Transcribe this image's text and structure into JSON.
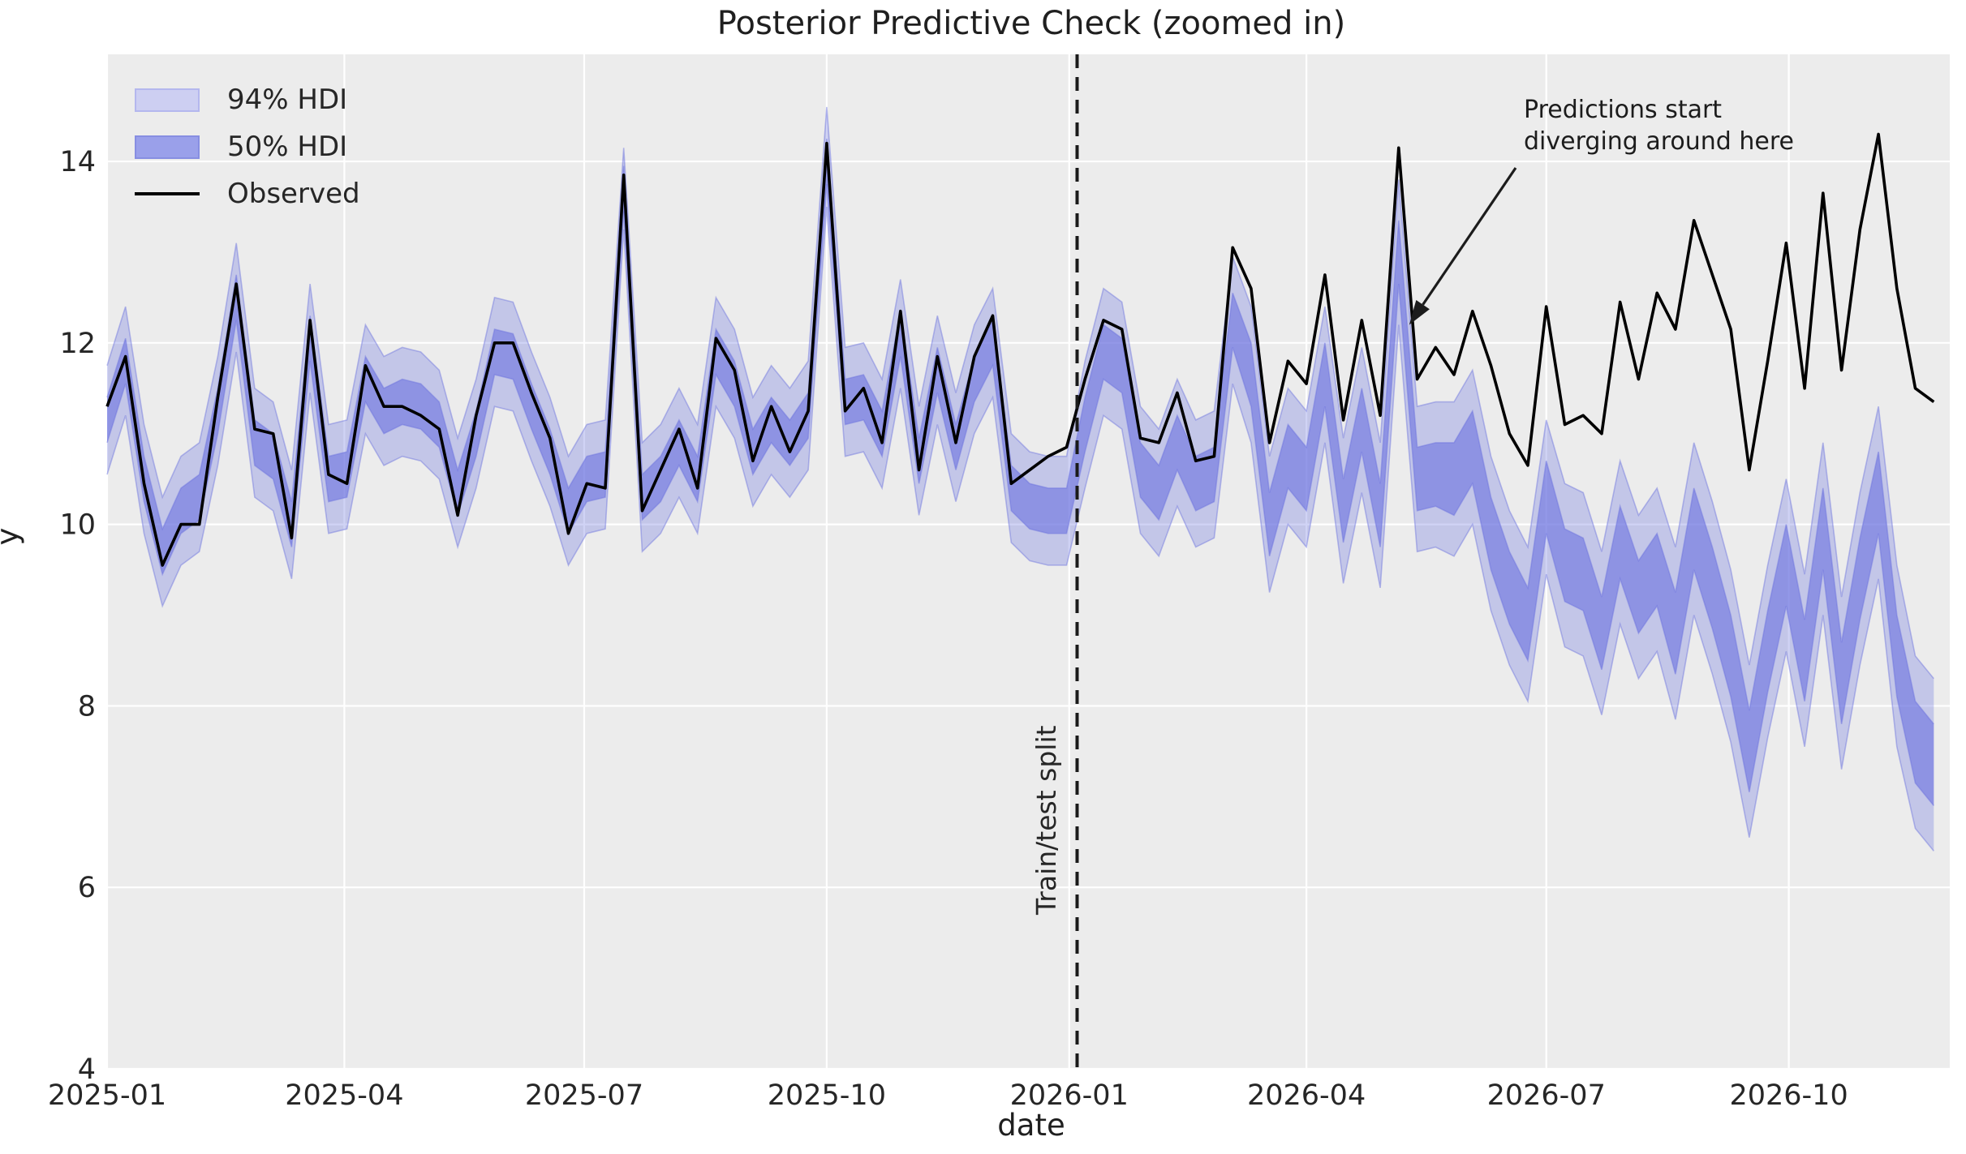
{
  "title": "Posterior Predictive Check (zoomed in)",
  "axes": {
    "xlabel": "date",
    "ylabel": "y"
  },
  "legend": {
    "items": [
      {
        "label": "94% HDI",
        "swatch": "band-light-icon"
      },
      {
        "label": "50% HDI",
        "swatch": "band-dark-icon"
      },
      {
        "label": "Observed",
        "swatch": "line-icon"
      }
    ]
  },
  "annotation": {
    "line1": "Predictions start",
    "line2": "diverging around here"
  },
  "split": {
    "label": "Train/test split",
    "date": "2026-01-04"
  },
  "colors": {
    "figure_bg": "#ffffff",
    "plot_bg": "#ececec",
    "grid": "#ffffff",
    "observed_line": "#000000",
    "band_base": "#7980e3",
    "band_edge": "#6a71dd",
    "split_line": "#1a1a1a",
    "text": "#262626"
  },
  "chart_data": {
    "type": "line",
    "title": "Posterior Predictive Check (zoomed in)",
    "xlabel": "date",
    "ylabel": "y",
    "grid": true,
    "legend_position": "upper left",
    "ylim": [
      4.0,
      15.18
    ],
    "yticks": [
      4,
      6,
      8,
      10,
      12,
      14
    ],
    "x_tick_dates": [
      "2025-01-01",
      "2025-04-01",
      "2025-07-01",
      "2025-10-01",
      "2026-01-01",
      "2026-04-01",
      "2026-07-01",
      "2026-10-01"
    ],
    "x_tick_labels": [
      "2025-01",
      "2025-04",
      "2025-07",
      "2025-10",
      "2026-01",
      "2026-04",
      "2026-07",
      "2026-10"
    ],
    "xlim": [
      "2025-01-01",
      "2026-12-01"
    ],
    "split_date": "2026-01-04",
    "annotation_point": {
      "date": "2026-05-10",
      "y": 12.2
    },
    "dates": [
      "2025-01-01",
      "2025-01-08",
      "2025-01-15",
      "2025-01-22",
      "2025-01-29",
      "2025-02-05",
      "2025-02-12",
      "2025-02-19",
      "2025-02-26",
      "2025-03-05",
      "2025-03-12",
      "2025-03-19",
      "2025-03-26",
      "2025-04-02",
      "2025-04-09",
      "2025-04-16",
      "2025-04-23",
      "2025-04-30",
      "2025-05-07",
      "2025-05-14",
      "2025-05-21",
      "2025-05-28",
      "2025-06-04",
      "2025-06-11",
      "2025-06-18",
      "2025-06-25",
      "2025-07-02",
      "2025-07-09",
      "2025-07-16",
      "2025-07-23",
      "2025-07-30",
      "2025-08-06",
      "2025-08-13",
      "2025-08-20",
      "2025-08-27",
      "2025-09-03",
      "2025-09-10",
      "2025-09-17",
      "2025-09-24",
      "2025-10-01",
      "2025-10-08",
      "2025-10-15",
      "2025-10-22",
      "2025-10-29",
      "2025-11-05",
      "2025-11-12",
      "2025-11-19",
      "2025-11-26",
      "2025-12-03",
      "2025-12-10",
      "2025-12-17",
      "2025-12-24",
      "2025-12-31",
      "2026-01-07",
      "2026-01-14",
      "2026-01-21",
      "2026-01-28",
      "2026-02-04",
      "2026-02-11",
      "2026-02-18",
      "2026-02-25",
      "2026-03-04",
      "2026-03-11",
      "2026-03-18",
      "2026-03-25",
      "2026-04-01",
      "2026-04-08",
      "2026-04-15",
      "2026-04-22",
      "2026-04-29",
      "2026-05-06",
      "2026-05-13",
      "2026-05-20",
      "2026-05-27",
      "2026-06-03",
      "2026-06-10",
      "2026-06-17",
      "2026-06-24",
      "2026-07-01",
      "2026-07-08",
      "2026-07-15",
      "2026-07-22",
      "2026-07-29",
      "2026-08-05",
      "2026-08-12",
      "2026-08-19",
      "2026-08-26",
      "2026-09-02",
      "2026-09-09",
      "2026-09-16",
      "2026-09-23",
      "2026-09-30",
      "2026-10-07",
      "2026-10-14",
      "2026-10-21",
      "2026-10-28",
      "2026-11-04",
      "2026-11-11",
      "2026-11-18",
      "2026-11-25"
    ],
    "series": [
      {
        "name": "Observed",
        "type": "line",
        "color": "#000000",
        "values": [
          11.3,
          11.85,
          10.45,
          9.55,
          10.0,
          10.0,
          11.4,
          12.65,
          11.05,
          11.0,
          9.85,
          12.25,
          10.55,
          10.45,
          11.75,
          11.3,
          11.3,
          11.2,
          11.05,
          10.1,
          11.2,
          12.0,
          12.0,
          11.45,
          10.95,
          9.9,
          10.45,
          10.4,
          13.85,
          10.15,
          10.6,
          11.05,
          10.4,
          12.05,
          11.7,
          10.7,
          11.3,
          10.8,
          11.25,
          14.2,
          11.25,
          11.5,
          10.9,
          12.35,
          10.6,
          11.85,
          10.9,
          11.85,
          12.3,
          10.45,
          10.6,
          10.75,
          10.85,
          11.6,
          12.25,
          12.15,
          10.95,
          10.9,
          11.45,
          10.7,
          10.75,
          13.05,
          12.6,
          10.9,
          11.8,
          11.55,
          12.75,
          11.15,
          12.25,
          11.2,
          14.15,
          11.6,
          11.95,
          11.65,
          12.35,
          11.75,
          11.0,
          10.65,
          12.4,
          11.1,
          11.2,
          11.0,
          12.45,
          11.6,
          12.55,
          12.15,
          13.35,
          12.75,
          12.15,
          10.6,
          11.8,
          13.1,
          11.5,
          13.65,
          11.7,
          13.25,
          14.3,
          12.6,
          11.5,
          11.35
        ]
      },
      {
        "name": "94% HDI",
        "type": "band",
        "lower": [
          10.55,
          11.2,
          9.9,
          9.1,
          9.55,
          9.7,
          10.65,
          11.9,
          10.3,
          10.15,
          9.4,
          11.45,
          9.9,
          9.95,
          11.0,
          10.65,
          10.75,
          10.7,
          10.5,
          9.75,
          10.4,
          11.3,
          11.25,
          10.7,
          10.2,
          9.55,
          9.9,
          9.95,
          13.25,
          9.7,
          9.9,
          10.3,
          9.9,
          11.3,
          10.95,
          10.2,
          10.55,
          10.3,
          10.6,
          13.5,
          10.75,
          10.8,
          10.4,
          11.5,
          10.1,
          11.1,
          10.25,
          11.0,
          11.4,
          9.8,
          9.6,
          9.55,
          9.55,
          10.4,
          11.2,
          11.05,
          9.9,
          9.65,
          10.2,
          9.75,
          9.85,
          11.55,
          10.9,
          9.25,
          10.0,
          9.75,
          10.9,
          9.35,
          10.35,
          9.3,
          12.2,
          9.7,
          9.75,
          9.65,
          10.0,
          9.05,
          8.45,
          8.05,
          9.45,
          8.65,
          8.55,
          7.9,
          8.9,
          8.3,
          8.6,
          7.85,
          9.0,
          8.35,
          7.6,
          6.55,
          7.65,
          8.6,
          7.55,
          9.0,
          7.3,
          8.45,
          9.4,
          7.55,
          6.65,
          6.4
        ],
        "upper": [
          11.75,
          12.4,
          11.1,
          10.3,
          10.75,
          10.9,
          11.85,
          13.1,
          11.5,
          11.35,
          10.6,
          12.65,
          11.1,
          11.15,
          12.2,
          11.85,
          11.95,
          11.9,
          11.7,
          10.95,
          11.6,
          12.5,
          12.45,
          11.9,
          11.4,
          10.75,
          11.1,
          11.15,
          14.15,
          10.9,
          11.1,
          11.5,
          11.1,
          12.5,
          12.15,
          11.4,
          11.75,
          11.5,
          11.8,
          14.6,
          11.95,
          12.0,
          11.6,
          12.7,
          11.3,
          12.3,
          11.45,
          12.2,
          12.6,
          11.0,
          10.8,
          10.75,
          10.75,
          11.8,
          12.6,
          12.45,
          11.3,
          11.05,
          11.6,
          11.15,
          11.25,
          12.95,
          12.4,
          10.75,
          11.5,
          11.25,
          12.4,
          10.95,
          11.95,
          10.9,
          13.8,
          11.3,
          11.35,
          11.35,
          11.7,
          10.75,
          10.15,
          9.75,
          11.15,
          10.45,
          10.35,
          9.7,
          10.7,
          10.1,
          10.4,
          9.75,
          10.9,
          10.25,
          9.5,
          8.45,
          9.55,
          10.5,
          9.45,
          10.9,
          9.2,
          10.35,
          11.3,
          9.55,
          8.55,
          8.3
        ]
      },
      {
        "name": "50% HDI",
        "type": "band",
        "lower": [
          10.9,
          11.55,
          10.25,
          9.45,
          9.9,
          10.05,
          11.0,
          12.25,
          10.65,
          10.5,
          9.75,
          11.8,
          10.25,
          10.3,
          11.35,
          11.0,
          11.1,
          11.05,
          10.85,
          10.1,
          10.75,
          11.65,
          11.6,
          11.05,
          10.55,
          9.9,
          10.25,
          10.3,
          13.45,
          10.05,
          10.25,
          10.65,
          10.25,
          11.65,
          11.3,
          10.55,
          10.9,
          10.65,
          10.95,
          13.75,
          11.1,
          11.15,
          10.75,
          11.85,
          10.45,
          11.45,
          10.6,
          11.35,
          11.75,
          10.15,
          9.95,
          9.9,
          9.9,
          10.8,
          11.6,
          11.45,
          10.3,
          10.05,
          10.6,
          10.15,
          10.25,
          11.95,
          11.3,
          9.65,
          10.4,
          10.15,
          11.3,
          9.8,
          10.8,
          9.75,
          12.65,
          10.15,
          10.2,
          10.1,
          10.45,
          9.5,
          8.9,
          8.5,
          9.9,
          9.15,
          9.05,
          8.4,
          9.4,
          8.8,
          9.1,
          8.35,
          9.5,
          8.85,
          8.1,
          7.05,
          8.15,
          9.1,
          8.05,
          9.5,
          7.8,
          8.95,
          9.9,
          8.1,
          7.15,
          6.9
        ],
        "upper": [
          11.4,
          12.05,
          10.75,
          9.95,
          10.4,
          10.55,
          11.5,
          12.75,
          11.15,
          11.0,
          10.25,
          12.3,
          10.75,
          10.8,
          11.85,
          11.5,
          11.6,
          11.55,
          11.35,
          10.6,
          11.25,
          12.15,
          12.1,
          11.55,
          11.05,
          10.4,
          10.75,
          10.8,
          13.95,
          10.55,
          10.75,
          11.15,
          10.75,
          12.15,
          11.8,
          11.05,
          11.4,
          11.15,
          11.45,
          14.25,
          11.6,
          11.65,
          11.25,
          12.35,
          10.95,
          11.95,
          11.1,
          11.85,
          12.25,
          10.65,
          10.45,
          10.4,
          10.4,
          11.4,
          12.2,
          12.05,
          10.9,
          10.65,
          11.2,
          10.75,
          10.85,
          12.55,
          12.0,
          10.35,
          11.1,
          10.85,
          12.0,
          10.5,
          11.5,
          10.45,
          13.35,
          10.85,
          10.9,
          10.9,
          11.25,
          10.3,
          9.7,
          9.3,
          10.7,
          9.95,
          9.85,
          9.2,
          10.2,
          9.6,
          9.9,
          9.25,
          10.4,
          9.75,
          9.0,
          7.95,
          9.05,
          10.0,
          8.95,
          10.4,
          8.7,
          9.85,
          10.8,
          9.0,
          8.05,
          7.8
        ]
      }
    ]
  }
}
